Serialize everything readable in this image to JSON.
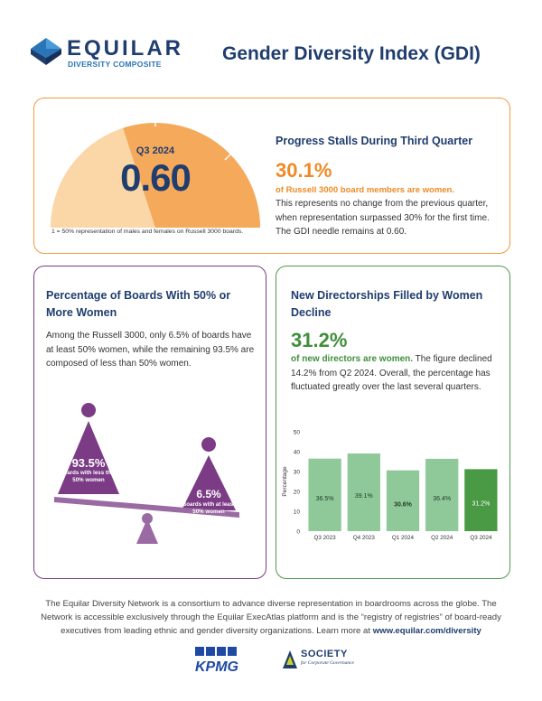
{
  "header": {
    "brand_name": "EQUILAR",
    "brand_sub": "DIVERSITY COMPOSITE",
    "title": "Gender Diversity Index  (GDI)"
  },
  "gdi_card": {
    "gauge_label": "Q3 2024",
    "gauge_value": "0.60",
    "gauge_note": "1 = 50% representation of males and females on Russell 3000 boards.",
    "heading": "Progress Stalls During Third Quarter",
    "big_stat": "30.1%",
    "stat_caption": "of Russell 3000 board members are women.",
    "body": "This represents no change from the previous quarter, when representation surpassed 30% for the first time. The GDI needle remains at 0.60."
  },
  "boards_card": {
    "heading": "Percentage of Boards With 50% or More Women",
    "body": "Among the Russell 3000, only 6.5% of boards have at least 50% women, while the remaining 93.5% are composed of less than 50% women.",
    "less_pct": "93.5%",
    "less_label": "Boards with less than 50% women",
    "more_pct": "6.5%",
    "more_label": "Boards with at least 50% women"
  },
  "directorships_card": {
    "heading": "New Directorships Filled by Women Decline",
    "big_stat": "31.2%",
    "body_lead": "of new directors are women.",
    "body_rest": " The figure declined 14.2% from Q2 2024. Overall, the percentage has fluctuated greatly over the last several quarters."
  },
  "chart_data": {
    "type": "bar",
    "categories": [
      "Q3 2023",
      "Q4 2023",
      "Q1 2024",
      "Q2 2024",
      "Q3 2024"
    ],
    "values": [
      36.5,
      39.1,
      30.6,
      36.4,
      31.2
    ],
    "data_labels": [
      "36.5%",
      "39.1%",
      "30.6%",
      "36.4%",
      "31.2%"
    ],
    "ylabel": "Percentage",
    "ylim": [
      0,
      50
    ],
    "yticks": [
      0,
      10,
      20,
      30,
      40,
      50
    ],
    "grid": false,
    "colors": {
      "bar": "#8fc99a",
      "highlight": "#4a9a45",
      "label_dark": "#1f3d1f",
      "label_light": "#ffffff"
    }
  },
  "footer": {
    "text": "The Equilar Diversity Network is a consortium to advance diverse representation in boardrooms across the globe. The Network is accessible exclusively through the Equilar ExecAtlas platform and is the “registry of registries” of board-ready executives from leading ethnic and gender diversity organizations. Learn more at ",
    "link": "www.equilar.com/diversity",
    "partner1": "KPMG",
    "partner2_name": "SOCIETY",
    "partner2_sub": "for Corporate Governance"
  },
  "colors": {
    "navy": "#1f3d6e",
    "orange": "#f08a24",
    "purple": "#7b3b85",
    "green": "#3f8f3a"
  }
}
